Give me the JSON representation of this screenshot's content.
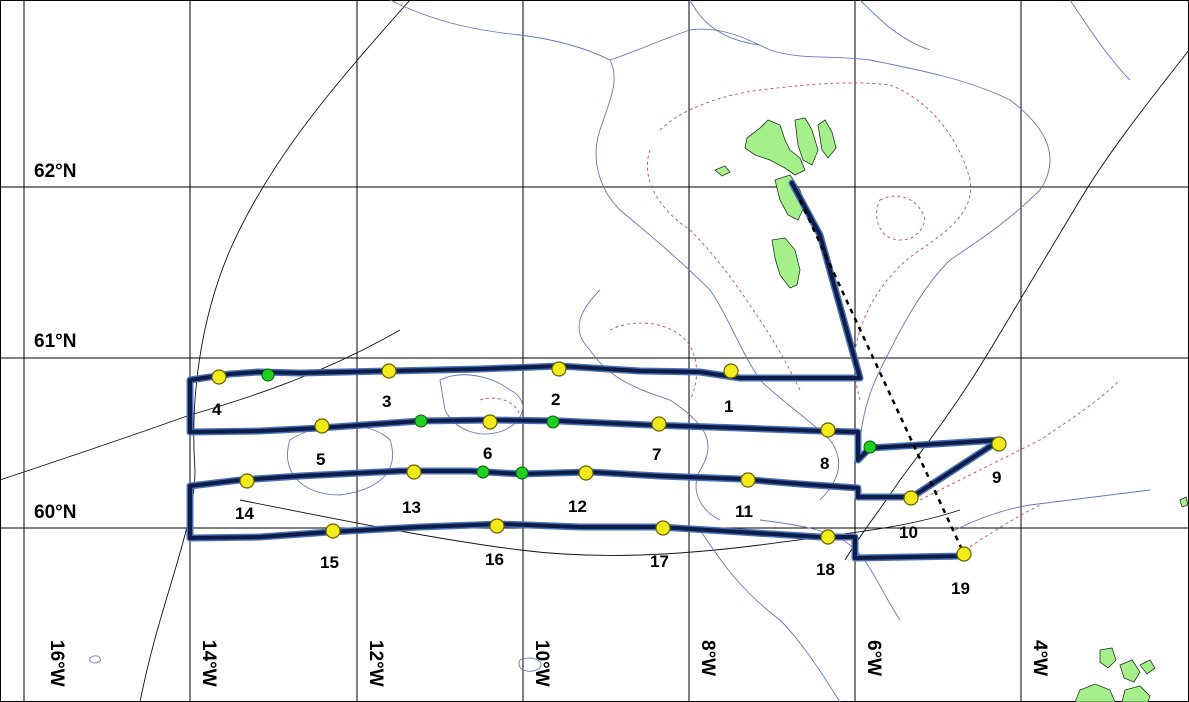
{
  "map": {
    "latitude_labels": [
      "62°N",
      "61°N",
      "60°N"
    ],
    "longitude_labels": [
      "16°W",
      "14°W",
      "12°W",
      "10°W",
      "8°W",
      "6°W",
      "4°W"
    ],
    "stations": [
      "1",
      "2",
      "3",
      "4",
      "5",
      "6",
      "7",
      "8",
      "9",
      "10",
      "11",
      "12",
      "13",
      "14",
      "15",
      "16",
      "17",
      "18",
      "19"
    ],
    "colors": {
      "track": "#0d1d4a",
      "track_edge": "#4a6fb5",
      "station_marker": "#f2ea1a",
      "extra_marker": "#1ed11e",
      "land": "#a6f08c",
      "grid": "#000000",
      "isobath": "#6677bb",
      "dashed_isobath": "#c0504d"
    }
  }
}
